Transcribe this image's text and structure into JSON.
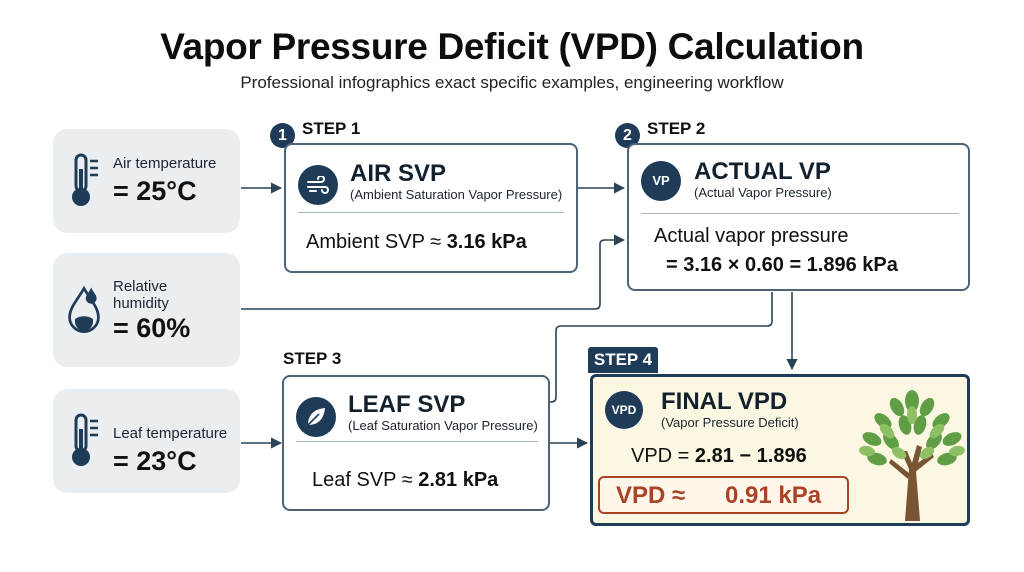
{
  "title": "Vapor Pressure Deficit (VPD) Calculation",
  "subtitle": "Professional infographics exact specific examples, engineering workflow",
  "inputs": {
    "air": {
      "label": "Air temperature",
      "value": "= 25°C"
    },
    "humidity": {
      "label_line1": "Relative",
      "label_line2": "humidity",
      "value": "= 60%"
    },
    "leaf": {
      "label": "Leaf temperature",
      "value": "= 23°C"
    }
  },
  "step1": {
    "tag": "STEP 1",
    "number": "1",
    "title": "AIR SVP",
    "subtitle": "(Ambient Saturation Vapor Pressure)",
    "formula_prefix": "Ambient SVP ≈ ",
    "formula_value": "3.16 kPa"
  },
  "step2": {
    "tag": "STEP 2",
    "number": "2",
    "icon_label": "VP",
    "title": "ACTUAL VP",
    "subtitle": "(Actual Vapor Pressure)",
    "formula_line1": "Actual vapor pressure",
    "formula_line2": "= 3.16 × 0.60 = 1.896 kPa"
  },
  "step3": {
    "tag": "STEP 3",
    "title": "LEAF SVP",
    "subtitle": "(Leaf Saturation Vapor Pressure)",
    "formula_prefix": "Leaf SVP ≈ ",
    "formula_value": "2.81 kPa"
  },
  "step4": {
    "tag": "STEP 4",
    "icon_label": "VPD",
    "title": "FINAL VPD",
    "subtitle": "(Vapor Pressure Deficit)",
    "formula_prefix": "VPD = ",
    "formula_value": "2.81 − 1.896",
    "result_label": "VPD ≈",
    "result_value": "0.91 kPa"
  },
  "colors": {
    "navy": "#1e3b57",
    "box_border": "#4d6378",
    "input_bg": "#ebeef1",
    "final_bg": "#fbf7e2",
    "result_red": "#a94326",
    "tree_green": "#5f9e45",
    "trunk_brown": "#7a5534"
  },
  "icons": [
    "thermometer-icon",
    "water-drop-icon",
    "wind-icon",
    "vp-icon",
    "leaf-icon",
    "vpd-icon",
    "tree-icon"
  ]
}
